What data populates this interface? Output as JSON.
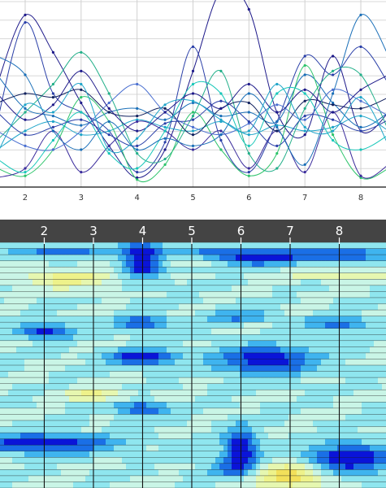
{
  "chart_data": [
    {
      "type": "line",
      "x_ticks": [
        "2",
        "3",
        "4",
        "5",
        "6",
        "7",
        "8"
      ],
      "x": [
        1.5,
        2,
        2.5,
        3,
        3.5,
        4,
        4.5,
        5,
        5.5,
        6,
        6.5,
        7,
        7.5,
        8,
        8.5
      ],
      "xlim": [
        1.55,
        8.45
      ],
      "ylim": [
        0,
        1
      ],
      "grid": true,
      "colors": [
        "#1e1a8a",
        "#2a3fa8",
        "#1a6fb8",
        "#1fa5c9",
        "#24b08a",
        "#2ec46b",
        "#3b2c9c",
        "#11215e",
        "#4a6fd0",
        "#18c7b9"
      ],
      "series": [
        {
          "values": [
            0.55,
            0.92,
            0.72,
            0.45,
            0.22,
            0.05,
            0.2,
            0.62,
            1.05,
            0.95,
            0.4,
            0.28,
            0.7,
            0.3,
            0.4
          ]
        },
        {
          "values": [
            0.35,
            0.88,
            0.5,
            0.4,
            0.3,
            0.08,
            0.24,
            0.75,
            0.25,
            0.08,
            0.35,
            0.7,
            0.6,
            0.75,
            0.55
          ]
        },
        {
          "values": [
            0.6,
            0.42,
            0.38,
            0.33,
            0.4,
            0.42,
            0.36,
            0.45,
            0.38,
            0.4,
            0.35,
            0.6,
            0.45,
            0.32,
            0.4
          ]
        },
        {
          "values": [
            0.2,
            0.3,
            0.35,
            0.28,
            0.3,
            0.36,
            0.32,
            0.3,
            0.35,
            0.28,
            0.33,
            0.3,
            0.32,
            0.38,
            0.3
          ]
        },
        {
          "values": [
            0.25,
            0.4,
            0.55,
            0.72,
            0.5,
            0.18,
            0.15,
            0.38,
            0.62,
            0.18,
            0.1,
            0.42,
            0.62,
            0.6,
            0.3
          ]
        },
        {
          "values": [
            0.1,
            0.06,
            0.2,
            0.48,
            0.35,
            0.04,
            0.12,
            0.4,
            0.2,
            0.06,
            0.18,
            0.65,
            0.28,
            0.05,
            0.1
          ]
        },
        {
          "values": [
            0.05,
            0.1,
            0.3,
            0.08,
            0.22,
            0.35,
            0.3,
            0.2,
            0.3,
            0.1,
            0.3,
            0.08,
            0.4,
            0.06,
            0.12
          ]
        },
        {
          "values": [
            0.45,
            0.5,
            0.48,
            0.52,
            0.4,
            0.38,
            0.42,
            0.28,
            0.42,
            0.45,
            0.3,
            0.46,
            0.44,
            0.42,
            0.48
          ]
        },
        {
          "values": [
            0.3,
            0.22,
            0.2,
            0.3,
            0.45,
            0.55,
            0.4,
            0.32,
            0.28,
            0.34,
            0.44,
            0.36,
            0.52,
            0.46,
            0.38
          ]
        },
        {
          "values": [
            0.15,
            0.08,
            0.25,
            0.4,
            0.18,
            0.1,
            0.3,
            0.55,
            0.5,
            0.22,
            0.5,
            0.5,
            0.25,
            0.2,
            0.28
          ]
        },
        {
          "values": [
            0.5,
            0.36,
            0.44,
            0.62,
            0.42,
            0.3,
            0.4,
            0.5,
            0.42,
            0.55,
            0.4,
            0.52,
            0.4,
            0.52,
            0.6
          ]
        },
        {
          "values": [
            0.4,
            0.28,
            0.32,
            0.36,
            0.28,
            0.22,
            0.34,
            0.36,
            0.46,
            0.35,
            0.22,
            0.38,
            0.36,
            0.3,
            0.36
          ]
        },
        {
          "values": [
            0.7,
            0.6,
            0.3,
            0.2,
            0.35,
            0.2,
            0.26,
            0.22,
            0.28,
            0.5,
            0.32,
            0.12,
            0.5,
            0.92,
            0.7
          ]
        },
        {
          "values": [
            0.18,
            0.44,
            0.4,
            0.55,
            0.2,
            0.26,
            0.44,
            0.46,
            0.36,
            0.3,
            0.55,
            0.32,
            0.3,
            0.48,
            0.22
          ]
        }
      ]
    },
    {
      "type": "heatmap",
      "x_ticks": [
        "2",
        "3",
        "4",
        "5",
        "6",
        "7",
        "8"
      ],
      "xlim": [
        1.1,
        8.95
      ],
      "rows": 40,
      "header_color": "#444444",
      "header_text_color": "#ffffff",
      "colormap": [
        "#0a14d8",
        "#1a6fe6",
        "#3fb4ef",
        "#8fe6ef",
        "#c9f5e6",
        "#e6f7b0",
        "#eef28a",
        "#f2e05a"
      ],
      "blobs": [
        {
          "x": 2.3,
          "y": 0.035,
          "sx": 0.9,
          "sy": 0.025,
          "v": -0.7
        },
        {
          "x": 4.0,
          "y": 0.07,
          "sx": 0.45,
          "sy": 0.08,
          "v": -1.1
        },
        {
          "x": 6.0,
          "y": 0.06,
          "sx": 1.2,
          "sy": 0.035,
          "v": -1.1
        },
        {
          "x": 8.0,
          "y": 0.05,
          "sx": 1.0,
          "sy": 0.03,
          "v": -0.8
        },
        {
          "x": 5.0,
          "y": 0.075,
          "sx": 1.0,
          "sy": 0.02,
          "v": 0.7
        },
        {
          "x": 2.5,
          "y": 0.15,
          "sx": 1.0,
          "sy": 0.04,
          "v": 0.6
        },
        {
          "x": 8.0,
          "y": 0.13,
          "sx": 1.0,
          "sy": 0.025,
          "v": 0.5
        },
        {
          "x": 2.0,
          "y": 0.36,
          "sx": 0.6,
          "sy": 0.03,
          "v": -0.9
        },
        {
          "x": 4.0,
          "y": 0.33,
          "sx": 0.55,
          "sy": 0.03,
          "v": -0.8
        },
        {
          "x": 6.0,
          "y": 0.3,
          "sx": 0.7,
          "sy": 0.025,
          "v": -0.6
        },
        {
          "x": 8.0,
          "y": 0.33,
          "sx": 0.7,
          "sy": 0.025,
          "v": -0.7
        },
        {
          "x": 4.0,
          "y": 0.47,
          "sx": 0.7,
          "sy": 0.035,
          "v": -1.0
        },
        {
          "x": 6.5,
          "y": 0.48,
          "sx": 1.0,
          "sy": 0.06,
          "v": -1.0
        },
        {
          "x": 3.0,
          "y": 0.62,
          "sx": 0.6,
          "sy": 0.025,
          "v": 0.6
        },
        {
          "x": 4.0,
          "y": 0.68,
          "sx": 0.55,
          "sy": 0.03,
          "v": -0.8
        },
        {
          "x": 2.0,
          "y": 0.82,
          "sx": 1.4,
          "sy": 0.04,
          "v": -1.0
        },
        {
          "x": 6.0,
          "y": 0.84,
          "sx": 0.35,
          "sy": 0.08,
          "v": -1.1
        },
        {
          "x": 8.2,
          "y": 0.88,
          "sx": 0.9,
          "sy": 0.06,
          "v": -1.1
        },
        {
          "x": 7.0,
          "y": 0.95,
          "sx": 0.7,
          "sy": 0.05,
          "v": 1.0
        },
        {
          "x": 5.8,
          "y": 0.92,
          "sx": 0.6,
          "sy": 0.04,
          "v": -0.5
        }
      ]
    }
  ]
}
